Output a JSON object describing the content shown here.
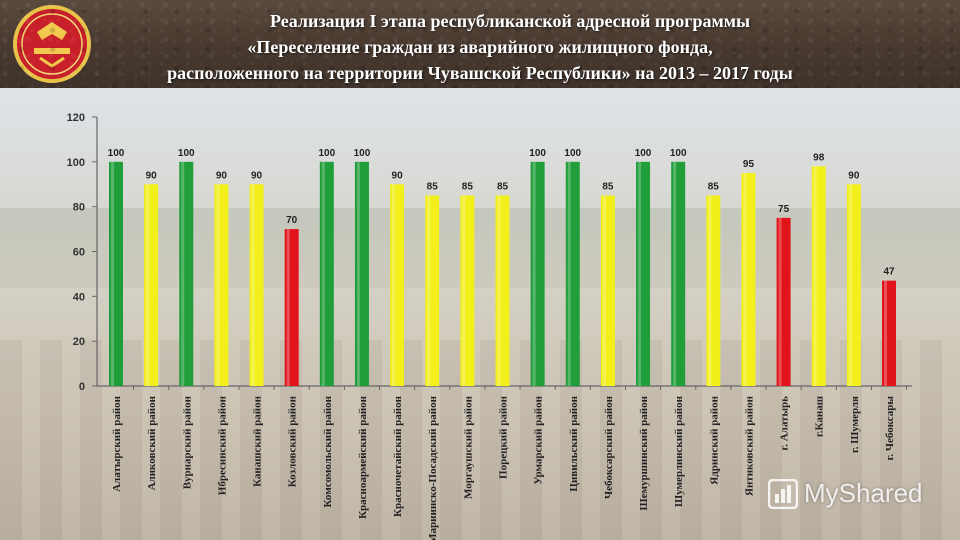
{
  "header": {
    "title_line1": "Реализация I этапа республиканской адресной программы",
    "title_line2": "«Переселение граждан из аварийного жилищного фонда,",
    "title_line3": "расположенного на территории Чувашской Республики» на 2013 – 2017  годы"
  },
  "watermark": {
    "text": "MyShared",
    "icon": "mybar-chart-icon"
  },
  "colors": {
    "green": "#1f9e3a",
    "yellow": "#f2ef1a",
    "red": "#e2141b",
    "axis": "#666666"
  },
  "chart_data": {
    "type": "bar",
    "title": "",
    "xlabel": "",
    "ylabel": "",
    "ylim": [
      0,
      120
    ],
    "yticks": [
      0,
      20,
      40,
      60,
      80,
      100,
      120
    ],
    "grid": false,
    "categories": [
      "Алатырский район",
      "Аликовский район",
      "Вурнарский район",
      "Ибресинский район",
      "Канашский район",
      "Козловский район",
      "Комсомольский район",
      "Красноармейский район",
      "Красночетайский район",
      "Мариинско-Посадский район",
      "Моргаушский район",
      "Порецкий район",
      "Урмарский район",
      "Цивильский район",
      "Чебоксарский район",
      "Шемуршинский район",
      "Шумерлинский район",
      "Ядринский район",
      "Янтиковский район",
      "г. Алатырь",
      "г.Канаш",
      "г. Шумерля",
      "г. Чебоксары"
    ],
    "values": [
      100,
      90,
      100,
      90,
      90,
      70,
      100,
      100,
      90,
      85,
      85,
      85,
      100,
      100,
      85,
      100,
      100,
      85,
      95,
      75,
      98,
      90,
      47
    ],
    "bar_colors": [
      "green",
      "yellow",
      "green",
      "yellow",
      "yellow",
      "red",
      "green",
      "green",
      "yellow",
      "yellow",
      "yellow",
      "yellow",
      "green",
      "green",
      "yellow",
      "green",
      "green",
      "yellow",
      "yellow",
      "red",
      "yellow",
      "yellow",
      "red"
    ]
  }
}
